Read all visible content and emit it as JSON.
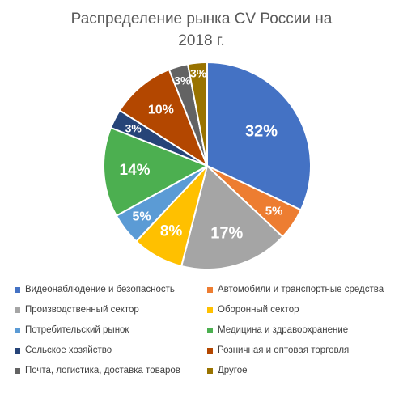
{
  "chart_data": {
    "type": "pie",
    "title_line1": "Распределение рынка CV России на",
    "title_line2": "2018 г.",
    "slices": [
      {
        "label": "Видеонаблюдение и безопасность",
        "value": 32,
        "value_label": "32%",
        "color": "#4472C4"
      },
      {
        "label": "Автомобили и транспортные средства",
        "value": 5,
        "value_label": "5%",
        "color": "#ED7D31"
      },
      {
        "label": "Производственный сектор",
        "value": 17,
        "value_label": "17%",
        "color": "#A5A5A5"
      },
      {
        "label": "Оборонный сектор",
        "value": 8,
        "value_label": "8%",
        "color": "#FFC000"
      },
      {
        "label": "Потребительский рынок",
        "value": 5,
        "value_label": "5%",
        "color": "#5B9BD5"
      },
      {
        "label": "Медицина и здравоохранение",
        "value": 14,
        "value_label": "14%",
        "color": "#4CAF50"
      },
      {
        "label": "Сельское хозяйство",
        "value": 3,
        "value_label": "3%",
        "color": "#264478"
      },
      {
        "label": "Розничная и оптовая торговля",
        "value": 10,
        "value_label": "10%",
        "color": "#B34700"
      },
      {
        "label": "Почта, логистика, доставка товаров",
        "value": 3,
        "value_label": "3%",
        "color": "#636363"
      },
      {
        "label": "Другое",
        "value": 3,
        "value_label": "3%",
        "color": "#997300"
      }
    ],
    "legend_position": "bottom"
  }
}
